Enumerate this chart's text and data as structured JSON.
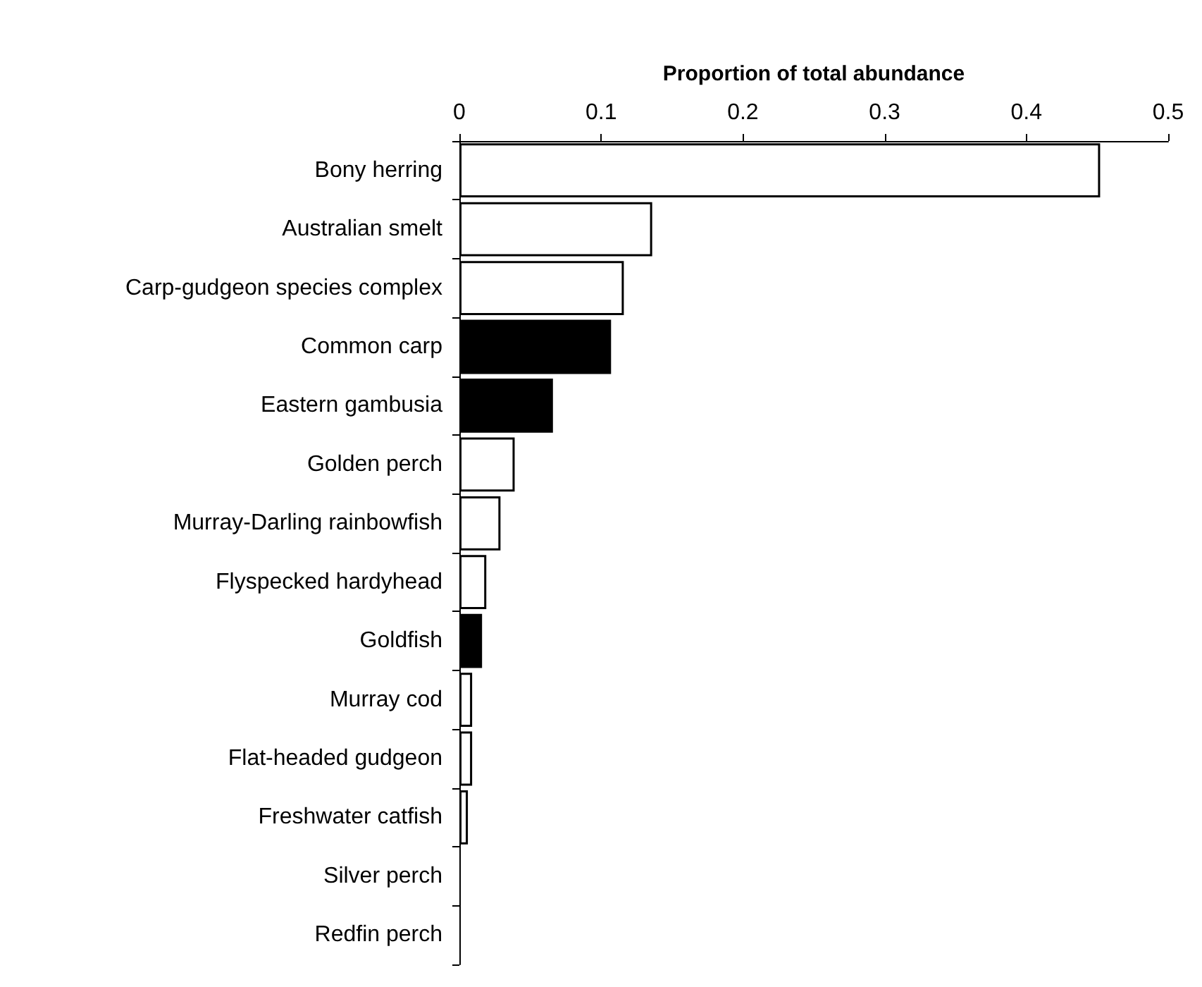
{
  "chart_data": {
    "type": "bar",
    "orientation": "horizontal",
    "xlabel": "Proportion of total abundance",
    "categories": [
      "Bony herring",
      "Australian smelt",
      "Carp-gudgeon species complex",
      "Common carp",
      "Eastern gambusia",
      "Golden perch",
      "Murray-Darling rainbowfish",
      "Flyspecked hardyhead",
      "Goldfish",
      "Murray cod",
      "Flat-headed gudgeon",
      "Freshwater catfish",
      "Silver perch",
      "Redfin perch"
    ],
    "values": [
      0.452,
      0.136,
      0.116,
      0.107,
      0.066,
      0.039,
      0.029,
      0.019,
      0.016,
      0.009,
      0.009,
      0.006,
      0,
      0
    ],
    "colors": [
      "#ffffff",
      "#ffffff",
      "#ffffff",
      "#000000",
      "#000000",
      "#ffffff",
      "#ffffff",
      "#ffffff",
      "#000000",
      "#ffffff",
      "#ffffff",
      "#ffffff",
      "#ffffff",
      "#ffffff"
    ],
    "xlim": [
      0,
      0.5
    ],
    "xticks": [
      0,
      0.1,
      0.2,
      0.3,
      0.4,
      0.5
    ],
    "grid": false
  }
}
